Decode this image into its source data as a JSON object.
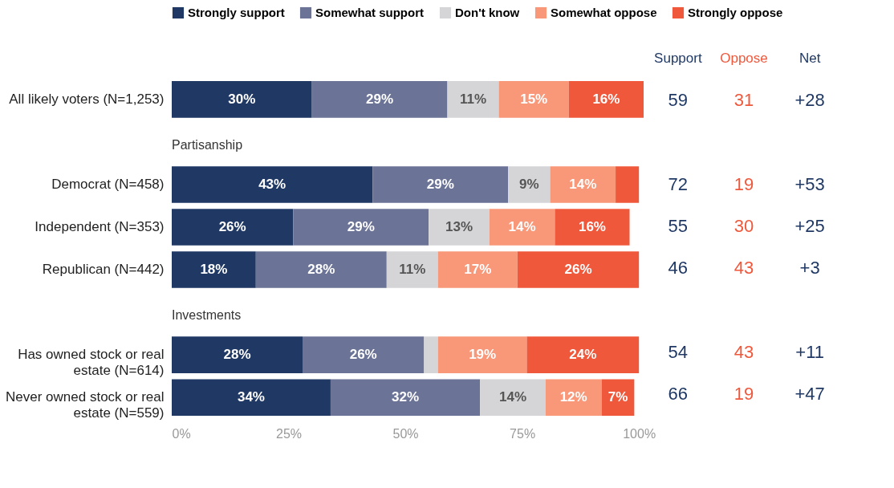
{
  "chart_data": [
    {
      "type": "bar",
      "orientation": "horizontal",
      "stacked": true,
      "legend": "top",
      "categories": [
        "All likely voters (N=1,253)",
        "Democrat (N=458)",
        "Independent (N=353)",
        "Republican (N=442)",
        "Has owned stock or real estate (N=614)",
        "Never owned stock or real estate (N=559)"
      ],
      "series": [
        {
          "name": "Strongly support",
          "color": "#1f3864",
          "values": [
            30,
            43,
            26,
            18,
            28,
            34
          ],
          "value_labels": [
            "30%",
            "43%",
            "26%",
            "18%",
            "28%",
            "34%"
          ]
        },
        {
          "name": "Somewhat support",
          "color": "#6b7396",
          "values": [
            29,
            29,
            29,
            28,
            26,
            32
          ],
          "value_labels": [
            "29%",
            "29%",
            "29%",
            "28%",
            "26%",
            "32%"
          ]
        },
        {
          "name": "Don't know",
          "color": "#d5d5d7",
          "values": [
            11,
            9,
            13,
            11,
            3,
            14
          ],
          "value_labels": [
            "11%",
            "9%",
            "13%",
            "11%",
            null,
            "14%"
          ]
        },
        {
          "name": "Somewhat oppose",
          "color": "#f99779",
          "values": [
            15,
            14,
            14,
            17,
            19,
            12
          ],
          "value_labels": [
            "15%",
            "14%",
            "14%",
            "17%",
            "19%",
            "12%"
          ]
        },
        {
          "name": "Strongly oppose",
          "color": "#f0583c",
          "values": [
            16,
            5,
            16,
            26,
            24,
            7
          ],
          "value_labels": [
            "16%",
            null,
            "16%",
            "26%",
            "24%",
            "7%"
          ]
        }
      ],
      "xlim": [
        0,
        101
      ],
      "xticks": [
        {
          "value": 0,
          "label": "0%"
        },
        {
          "value": 25,
          "label": "25%"
        },
        {
          "value": 50,
          "label": "50%"
        },
        {
          "value": 75,
          "label": "75%"
        },
        {
          "value": 100,
          "label": "100%"
        }
      ],
      "annotations": [
        "Partisanship",
        "Investments"
      ]
    },
    {
      "type": "other",
      "annotations": [
        "Support",
        "Oppose",
        "Net",
        "59",
        "31",
        "+28",
        "72",
        "19",
        "+53",
        "55",
        "30",
        "+25",
        "46",
        "43",
        "+3",
        "54",
        "43",
        "+11",
        "66",
        "19",
        "+47"
      ]
    }
  ]
}
